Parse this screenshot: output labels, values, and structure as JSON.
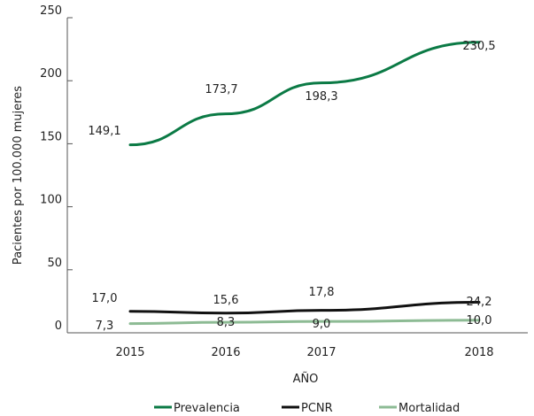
{
  "chart_data": {
    "type": "line",
    "x": [
      "2015",
      "2016",
      "2017",
      "2018"
    ],
    "xlabel": "AÑO",
    "ylabel": "Pacientes por 100.000 mujeres",
    "ylim": [
      0,
      250
    ],
    "yticks": [
      "0",
      "50",
      "100",
      "150",
      "200",
      "250"
    ],
    "grid": "horizontal",
    "legend_position": "bottom",
    "series": [
      {
        "name": "Prevalencia",
        "color": "#0b7a45",
        "values": [
          149.1,
          173.7,
          198.3,
          230.5
        ],
        "labels": [
          "149,1",
          "173,7",
          "198,3",
          "230,5"
        ]
      },
      {
        "name": "PCNR",
        "color": "#111111",
        "values": [
          17.0,
          15.6,
          17.8,
          24.2
        ],
        "labels": [
          "17,0",
          "15,6",
          "17,8",
          "24,2"
        ]
      },
      {
        "name": "Mortalidad",
        "color": "#8dbb94",
        "values": [
          7.3,
          8.3,
          9.0,
          10.0
        ],
        "labels": [
          "7,3",
          "8,3",
          "9,0",
          "10,0"
        ]
      }
    ]
  }
}
